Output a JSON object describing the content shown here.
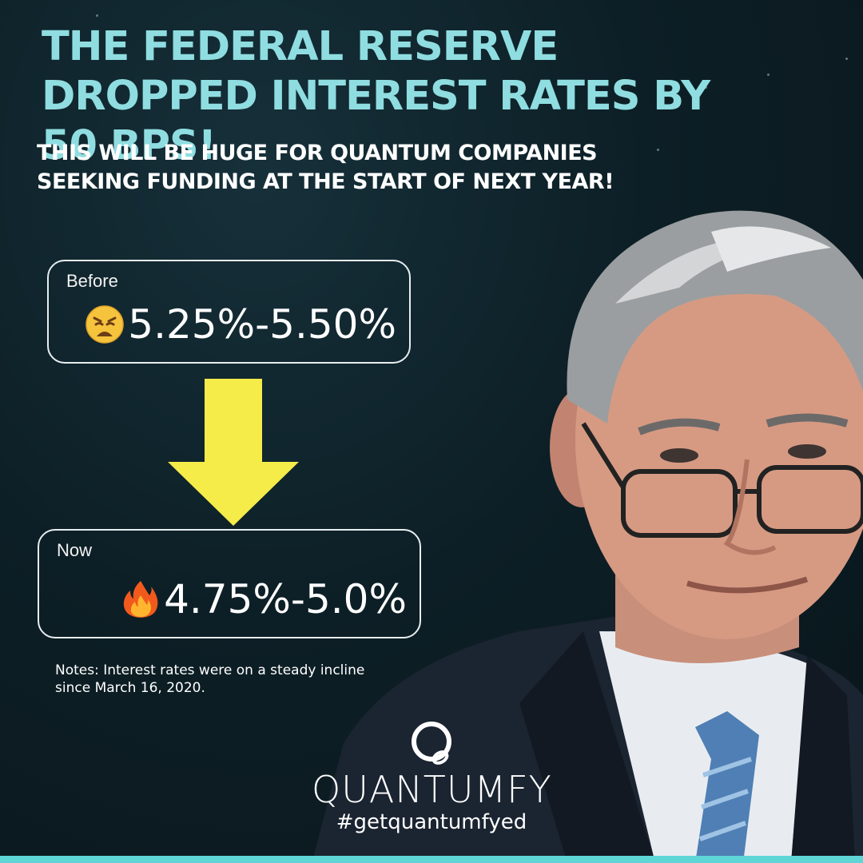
{
  "headline": "THE FEDERAL RESERVE DROPPED INTEREST RATES BY 50 BPS!",
  "subheadline": "THIS WILL BE HUGE FOR QUANTUM COMPANIES SEEKING FUNDING AT THE START OF NEXT YEAR!",
  "before": {
    "label": "Before",
    "value": "5.25%-5.50%",
    "emoji": "weary-face-icon"
  },
  "now": {
    "label": "Now",
    "value": "4.75%-5.0%",
    "emoji": "fire-icon"
  },
  "notes": "Notes: Interest rates were on a steady incline since March 16, 2020.",
  "brand": {
    "name": "QUANTUMFY",
    "hashtag": "#getquantumfyed"
  },
  "colors": {
    "headline": "#8fdde0",
    "background": "#0d1f26",
    "arrow": "#f5ec4a",
    "accent_bar": "#5ed6d6"
  }
}
